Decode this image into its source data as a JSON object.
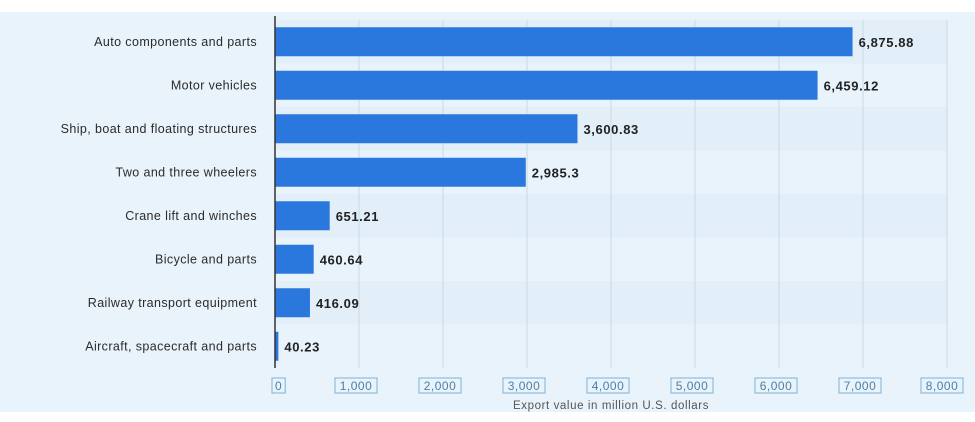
{
  "chart_data": {
    "type": "bar",
    "orientation": "horizontal",
    "categories": [
      "Auto components and parts",
      "Motor vehicles",
      "Ship, boat and floating structures",
      "Two and three wheelers",
      "Crane lift and winches",
      "Bicycle and parts",
      "Railway transport equipment",
      "Aircraft, spacecraft and parts"
    ],
    "values": [
      6875.88,
      6459.12,
      3600.83,
      2985.3,
      651.21,
      460.64,
      416.09,
      40.23
    ],
    "value_labels": [
      "6,875.88",
      "6,459.12",
      "3,600.83",
      "2,985.3",
      "651.21",
      "460.64",
      "416.09",
      "40.23"
    ],
    "xticks": [
      0,
      1000,
      2000,
      3000,
      4000,
      5000,
      6000,
      7000,
      8000
    ],
    "xtick_labels": [
      "0",
      "1,000",
      "2,000",
      "3,000",
      "4,000",
      "5,000",
      "6,000",
      "7,000",
      "8,000"
    ],
    "xlim": [
      0,
      8000
    ],
    "xlabel": "Export value in million U.S. dollars",
    "ylabel": "",
    "title": "",
    "grid": true,
    "bar_color": "#2a78dd"
  }
}
